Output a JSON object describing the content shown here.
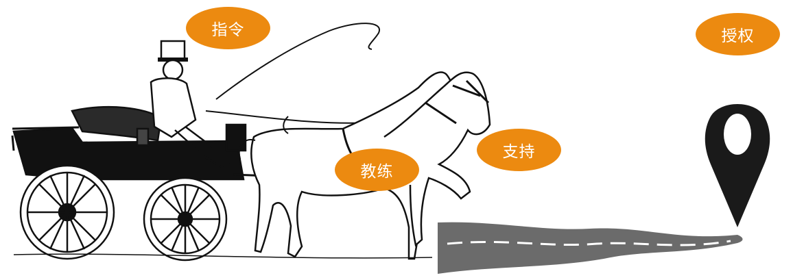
{
  "labels": {
    "instruct": "指令",
    "coach": "教练",
    "support": "支持",
    "authorize": "授权"
  },
  "colors": {
    "bubble": "#ec8a10",
    "bubble_text": "#ffffff",
    "ink": "#111111",
    "road": "#6b6b6b",
    "pin": "#1a1a1a"
  },
  "icons": [
    "carriage-illustration",
    "map-pin-icon",
    "road-illustration"
  ]
}
